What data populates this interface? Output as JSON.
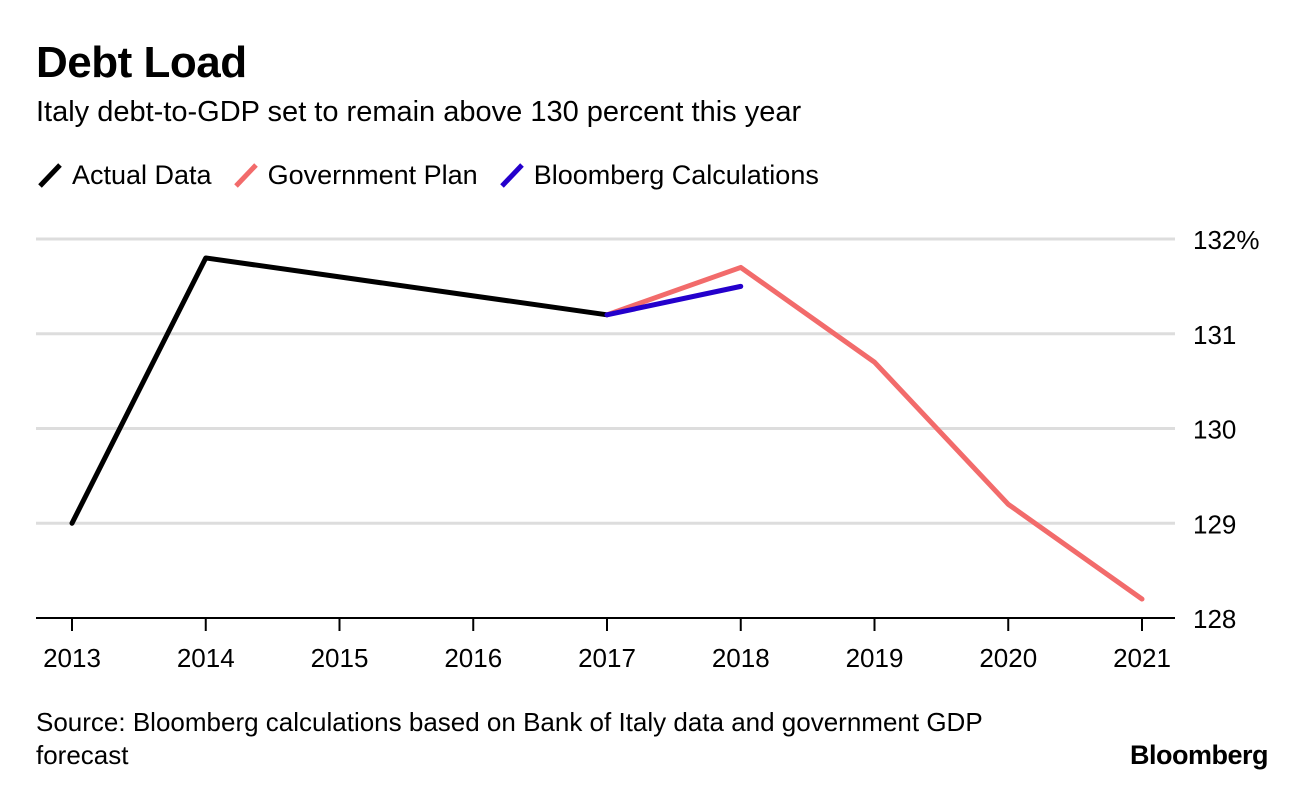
{
  "header": {
    "title": "Debt Load",
    "subtitle": "Italy debt-to-GDP set to remain above 130 percent this year"
  },
  "legend": [
    {
      "label": "Actual Data",
      "color": "#000000"
    },
    {
      "label": "Government Plan",
      "color": "#f26b6b"
    },
    {
      "label": "Bloomberg Calculations",
      "color": "#2400cc"
    }
  ],
  "footer": {
    "source": "Source: Bloomberg calculations based on Bank of Italy data and government GDP forecast",
    "brand": "Bloomberg"
  },
  "chart_data": {
    "type": "line",
    "title": "Debt Load",
    "subtitle": "Italy debt-to-GDP set to remain above 130 percent this year",
    "xlabel": "",
    "ylabel": "",
    "categories": [
      "2013",
      "2014",
      "2015",
      "2016",
      "2017",
      "2018",
      "2019",
      "2020",
      "2021"
    ],
    "ylim": [
      128,
      132
    ],
    "yticks": [
      128,
      129,
      130,
      131,
      132
    ],
    "ytick_labels": [
      "128",
      "129",
      "130",
      "131",
      "132%"
    ],
    "grid": true,
    "legend_position": "top-left",
    "axis_position": "right",
    "series": [
      {
        "name": "Actual Data",
        "color": "#000000",
        "x": [
          "2013",
          "2014",
          "2015",
          "2016",
          "2017"
        ],
        "values": [
          129.0,
          131.8,
          131.6,
          131.4,
          131.2
        ]
      },
      {
        "name": "Government Plan",
        "color": "#f26b6b",
        "x": [
          "2017",
          "2018",
          "2019",
          "2020",
          "2021"
        ],
        "values": [
          131.2,
          131.7,
          130.7,
          129.2,
          128.2
        ]
      },
      {
        "name": "Bloomberg Calculations",
        "color": "#2400cc",
        "x": [
          "2017",
          "2018"
        ],
        "values": [
          131.2,
          131.5
        ]
      }
    ]
  }
}
